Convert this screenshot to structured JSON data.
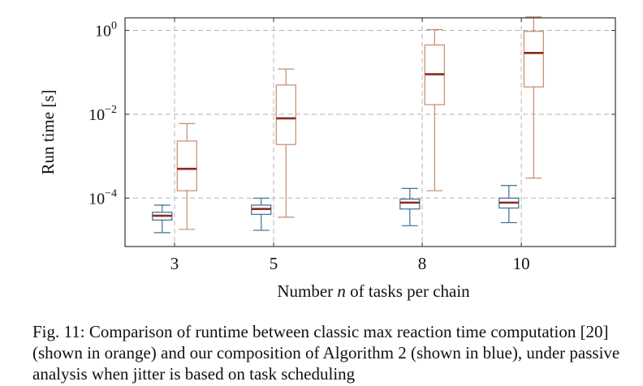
{
  "chart_data": {
    "type": "box",
    "ylabel": "Run time [s]",
    "xlabel_parts": [
      "Number ",
      "n",
      " of tasks per chain"
    ],
    "y_scale": "log",
    "ylim": [
      7e-06,
      2
    ],
    "xlim": [
      2.0,
      11.9
    ],
    "y_ticks": [
      {
        "value": 1,
        "base": "10",
        "exp": "0"
      },
      {
        "value": 0.01,
        "base": "10",
        "exp": "−2"
      },
      {
        "value": 0.0001,
        "base": "10",
        "exp": "−4"
      }
    ],
    "categories": [
      "3",
      "5",
      "8",
      "10"
    ],
    "x_values": [
      3,
      5,
      8,
      10
    ],
    "grid": true,
    "series": [
      {
        "color": "#3c6e91",
        "offset": -0.25,
        "boxes": [
          {
            "whisker_low": 1.5e-05,
            "q1": 3e-05,
            "median": 3.8e-05,
            "q3": 4.6e-05,
            "whisker_high": 6.8e-05
          },
          {
            "whisker_low": 1.7e-05,
            "q1": 4.1e-05,
            "median": 5.5e-05,
            "q3": 6.8e-05,
            "whisker_high": 0.0001
          },
          {
            "whisker_low": 2.2e-05,
            "q1": 5.5e-05,
            "median": 7.8e-05,
            "q3": 9.5e-05,
            "whisker_high": 0.00017
          },
          {
            "whisker_low": 2.6e-05,
            "q1": 5.8e-05,
            "median": 7.8e-05,
            "q3": 0.0001,
            "whisker_high": 0.0002
          }
        ]
      },
      {
        "color": "#c88a6e",
        "offset": 0.25,
        "boxes": [
          {
            "whisker_low": 1.8e-05,
            "q1": 0.00015,
            "median": 0.0005,
            "q3": 0.0023,
            "whisker_high": 0.006
          },
          {
            "whisker_low": 3.5e-05,
            "q1": 0.0019,
            "median": 0.008,
            "q3": 0.05,
            "whisker_high": 0.12
          },
          {
            "whisker_low": 0.00015,
            "q1": 0.017,
            "median": 0.09,
            "q3": 0.45,
            "whisker_high": 1.05
          },
          {
            "whisker_low": 0.0003,
            "q1": 0.045,
            "median": 0.29,
            "q3": 0.95,
            "whisker_high": 2.1
          }
        ]
      }
    ],
    "median_color": "#8b2a1e"
  },
  "caption": "Fig. 11: Comparison of runtime between classic max reaction time computation [20] (shown in orange) and our composition of Algorithm 2 (shown in blue), under passive analysis when jitter is based on task scheduling"
}
